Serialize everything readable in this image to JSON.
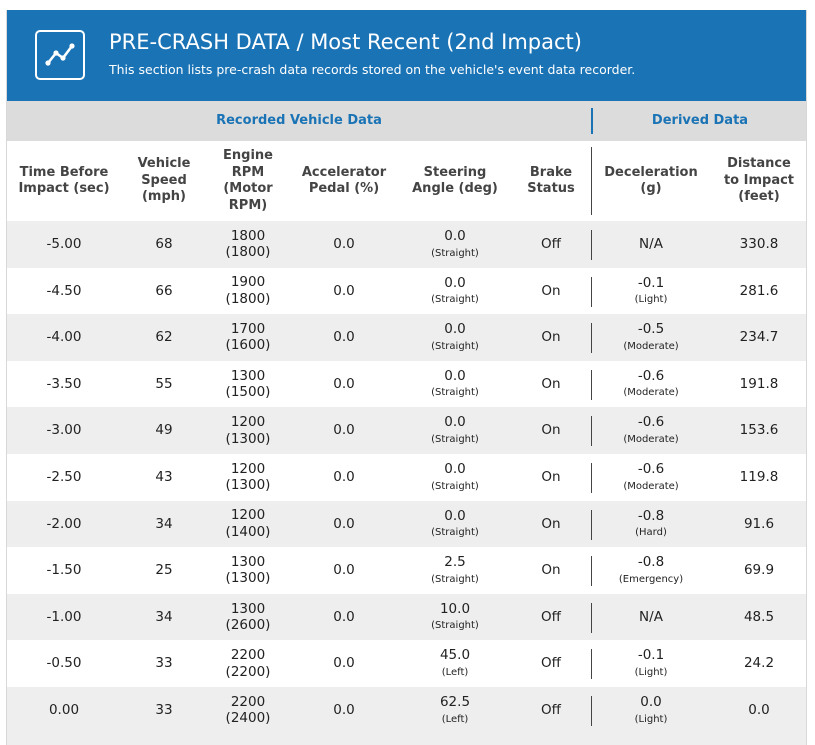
{
  "banner": {
    "icon": "trend-line-icon",
    "title": "PRE-CRASH DATA / Most Recent (2nd Impact)",
    "subtitle": "This section lists pre-crash data records stored on the vehicle's event data recorder."
  },
  "groups": {
    "recorded": "Recorded Vehicle Data",
    "derived": "Derived Data"
  },
  "columns": [
    "Time Before\nImpact (sec)",
    "Vehicle\nSpeed\n(mph)",
    "Engine\nRPM\n(Motor\nRPM)",
    "Accelerator\nPedal (%)",
    "Steering\nAngle (deg)",
    "Brake\nStatus",
    "Deceleration\n(g)",
    "Distance\nto Impact\n(feet)"
  ],
  "rows": [
    {
      "time": "-5.00",
      "speed": "68",
      "rpm": "1800",
      "motor_rpm": "(1800)",
      "pedal": "0.0",
      "steer": "0.0",
      "steer_dir": "(Straight)",
      "brake": "Off",
      "decel": "N/A",
      "decel_desc": "",
      "distance": "330.8"
    },
    {
      "time": "-4.50",
      "speed": "66",
      "rpm": "1900",
      "motor_rpm": "(1800)",
      "pedal": "0.0",
      "steer": "0.0",
      "steer_dir": "(Straight)",
      "brake": "On",
      "decel": "-0.1",
      "decel_desc": "(Light)",
      "distance": "281.6"
    },
    {
      "time": "-4.00",
      "speed": "62",
      "rpm": "1700",
      "motor_rpm": "(1600)",
      "pedal": "0.0",
      "steer": "0.0",
      "steer_dir": "(Straight)",
      "brake": "On",
      "decel": "-0.5",
      "decel_desc": "(Moderate)",
      "distance": "234.7"
    },
    {
      "time": "-3.50",
      "speed": "55",
      "rpm": "1300",
      "motor_rpm": "(1500)",
      "pedal": "0.0",
      "steer": "0.0",
      "steer_dir": "(Straight)",
      "brake": "On",
      "decel": "-0.6",
      "decel_desc": "(Moderate)",
      "distance": "191.8"
    },
    {
      "time": "-3.00",
      "speed": "49",
      "rpm": "1200",
      "motor_rpm": "(1300)",
      "pedal": "0.0",
      "steer": "0.0",
      "steer_dir": "(Straight)",
      "brake": "On",
      "decel": "-0.6",
      "decel_desc": "(Moderate)",
      "distance": "153.6"
    },
    {
      "time": "-2.50",
      "speed": "43",
      "rpm": "1200",
      "motor_rpm": "(1300)",
      "pedal": "0.0",
      "steer": "0.0",
      "steer_dir": "(Straight)",
      "brake": "On",
      "decel": "-0.6",
      "decel_desc": "(Moderate)",
      "distance": "119.8"
    },
    {
      "time": "-2.00",
      "speed": "34",
      "rpm": "1200",
      "motor_rpm": "(1400)",
      "pedal": "0.0",
      "steer": "0.0",
      "steer_dir": "(Straight)",
      "brake": "On",
      "decel": "-0.8",
      "decel_desc": "(Hard)",
      "distance": "91.6"
    },
    {
      "time": "-1.50",
      "speed": "25",
      "rpm": "1300",
      "motor_rpm": "(1300)",
      "pedal": "0.0",
      "steer": "2.5",
      "steer_dir": "(Straight)",
      "brake": "On",
      "decel": "-0.8",
      "decel_desc": "(Emergency)",
      "distance": "69.9"
    },
    {
      "time": "-1.00",
      "speed": "34",
      "rpm": "1300",
      "motor_rpm": "(2600)",
      "pedal": "0.0",
      "steer": "10.0",
      "steer_dir": "(Straight)",
      "brake": "Off",
      "decel": "N/A",
      "decel_desc": "",
      "distance": "48.5"
    },
    {
      "time": "-0.50",
      "speed": "33",
      "rpm": "2200",
      "motor_rpm": "(2200)",
      "pedal": "0.0",
      "steer": "45.0",
      "steer_dir": "(Left)",
      "brake": "Off",
      "decel": "-0.1",
      "decel_desc": "(Light)",
      "distance": "24.2"
    },
    {
      "time": "0.00",
      "speed": "33",
      "rpm": "2200",
      "motor_rpm": "(2400)",
      "pedal": "0.0",
      "steer": "62.5",
      "steer_dir": "(Left)",
      "brake": "Off",
      "decel": "0.0",
      "decel_desc": "(Light)",
      "distance": "0.0"
    }
  ]
}
